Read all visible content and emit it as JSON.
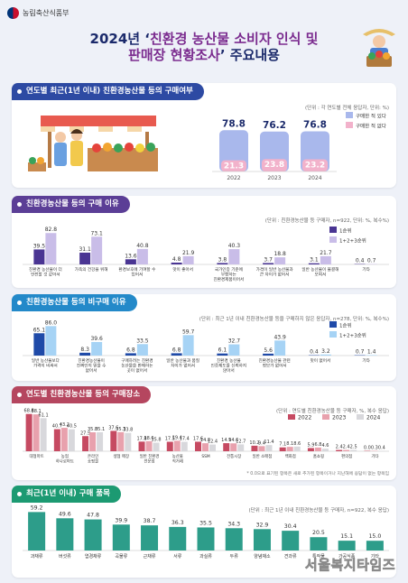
{
  "header": {
    "ministry": "농림축산식품부",
    "title_line1_prefix": "2024년 ‘",
    "title_line1_hl": "친환경 농산물 소비자 인식 및",
    "title_line2_hl": "판매장 현황조사",
    "title_line2_suffix": "’ 주요내용"
  },
  "colors": {
    "bg": "#eef1f8",
    "navy": "#1b2a6b",
    "blue_head": "#2d4aa3",
    "purple_head": "#5b3e96",
    "teal_head": "#2389c9",
    "rose_head": "#b5465f",
    "green_head": "#1c9a72",
    "bar_blue": "#a9b8ec",
    "bar_pink": "#f2b2cb",
    "bar_purple_dark": "#4a3593",
    "bar_purple_light": "#c9bde8",
    "bar_navy": "#1f4aa8",
    "bar_sky": "#a6d3f5",
    "rose1": "#c64a62",
    "rose2": "#e8a1ad",
    "rose3": "#d8d8dc",
    "green_bar": "#2d9d8a"
  },
  "panels": {
    "p1": {
      "title": "연도별 최근(1년 이내) 친환경농산물 등의 구매여부",
      "note": "(단위 : 각 연도별 전체 응답자, 단위: %)"
    },
    "p2": {
      "title": "친환경농산물 등의 구매 이유",
      "note": "(단위 : 친환경농산물 등 구매자, n=922, 단위: %, 복수%)"
    },
    "p3": {
      "title": "친환경농산물 등의 비구매 이유",
      "note": "(단위 : 최근 1년 이내 친환경농산물 등을 구매하지 않은 응답자, n=278, 단위: %, 복수%)"
    },
    "p4": {
      "title": "연도별 친환경농산물 등의 구매장소",
      "note": "(단위 : 연도별 친환경농산물 등 구매자, %, 복수 응답)",
      "footnote": "* 0.0으로 표기된 항목은 새로 추가된 항목이거나 지난해에 응답이 없는 항목임"
    },
    "p5": {
      "title": "최근(1년 이내) 구매 품목",
      "note": "(단위 : 최근 1년 이내 친환경농산물 등 구매자, n=922, 복수 응답)"
    }
  },
  "watermark": "서울복지타임즈",
  "chart_data": [
    {
      "type": "bar",
      "title": "연도별 최근(1년 이내) 친환경농산물 등의 구매여부",
      "categories": [
        "2022",
        "2023",
        "2024"
      ],
      "series": [
        {
          "name": "구매한 적 있다",
          "values": [
            78.8,
            76.2,
            76.8
          ]
        },
        {
          "name": "구매한 적 없다",
          "values": [
            21.3,
            23.8,
            23.2
          ]
        }
      ],
      "legend": "top-right"
    },
    {
      "type": "bar",
      "title": "친환경농산물 등의 구매 이유",
      "categories": [
        "친환경 농산물이 더 안전할 것 같아서",
        "가족의 건강을 위해",
        "환경보호에 기여할 수 있어서",
        "맛이 좋아서",
        "국가인증 기준에 부합하는 친환경제품이어서",
        "가격이 일반 농산물과 큰 차이가 없어서",
        "일반 농산물이 불결해 보여서",
        "기타"
      ],
      "series": [
        {
          "name": "1순위",
          "values": [
            39.5,
            31.1,
            13.6,
            4.8,
            3.8,
            3.7,
            3.1,
            0.4
          ]
        },
        {
          "name": "1+2+3순위",
          "values": [
            82.8,
            73.1,
            40.8,
            21.9,
            40.3,
            18.8,
            21.7,
            0.7
          ]
        }
      ],
      "legend": "top-right"
    },
    {
      "type": "bar",
      "title": "친환경농산물 등의 비구매 이유",
      "categories": [
        "일반 농산물보다 가격이 비싸서",
        "친환경농산물이 진짜인지 믿을 수 없어서",
        "구매하려는 친환경 농산물을 판매하는 곳이 없어서",
        "일반 농산물과 품질 차이가 없어서",
        "친환경 농산물 인증제도를 신뢰하지 않아서",
        "친환경농산물 관련 정보가 없어서",
        "맛이 없어서",
        "기타"
      ],
      "series": [
        {
          "name": "1순위",
          "values": [
            65.1,
            8.3,
            6.8,
            6.8,
            6.1,
            5.6,
            0.4,
            0.7
          ]
        },
        {
          "name": "1+2+3순위",
          "values": [
            86.0,
            39.6,
            33.5,
            59.7,
            32.7,
            43.9,
            3.2,
            1.4
          ]
        }
      ],
      "legend": "top-right"
    },
    {
      "type": "bar",
      "title": "연도별 친환경농산물 등의 구매장소",
      "categories": [
        "대형마트",
        "농협 하나로마트",
        "온라인 쇼핑몰",
        "생협 매장",
        "일반 친환경 전문점",
        "농산물 직거래",
        "SSM",
        "전통시장",
        "일반 소매점",
        "백화점",
        "홈쇼핑",
        "편의점",
        "기타"
      ],
      "series": [
        {
          "name": "2022",
          "values": [
            68.8,
            40.7,
            27.9,
            37.6,
            17.8,
            17.5,
            17.6,
            14.9,
            10.2,
            7.1,
            5.9,
            2.4,
            0.0
          ]
        },
        {
          "name": "2023",
          "values": [
            68.1,
            43.2,
            35.0,
            35.3,
            18.6,
            19.4,
            14.8,
            14.6,
            9.4,
            8.1,
            6.8,
            2.4,
            0.3
          ]
        },
        {
          "name": "2024",
          "values": [
            61.1,
            40.5,
            35.1,
            33.8,
            15.8,
            17.4,
            12.4,
            12.7,
            11.4,
            8.6,
            4.6,
            2.5,
            0.4
          ]
        }
      ],
      "legend": "top-right"
    },
    {
      "type": "bar",
      "title": "최근(1년 이내) 구매 품목",
      "categories": [
        "과채류",
        "버섯류",
        "엽경채류",
        "곡물류",
        "근채류",
        "서류",
        "과실류",
        "두류",
        "양념채소",
        "견과류",
        "특작물",
        "가공식품",
        "기타"
      ],
      "values": [
        59.2,
        49.6,
        47.8,
        39.9,
        38.7,
        36.3,
        35.5,
        34.3,
        32.9,
        30.4,
        20.5,
        15.1,
        15.0
      ]
    }
  ]
}
